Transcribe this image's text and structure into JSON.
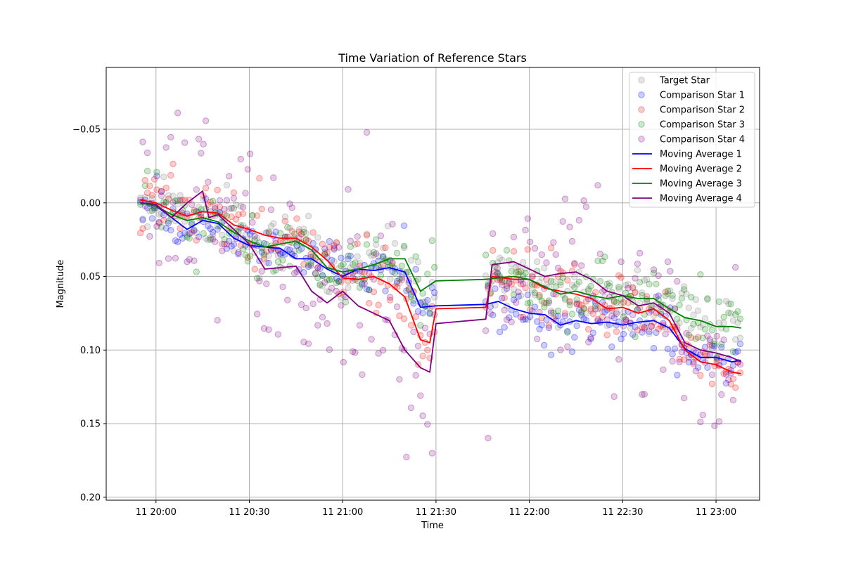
{
  "chart_data": {
    "type": "scatter",
    "title": "Time Variation of Reference Stars",
    "xlabel": "Time",
    "ylabel": "Magnitude",
    "y_inverted": true,
    "ylim": [
      0.202,
      -0.092
    ],
    "xlim": [
      "11 19:44",
      "11 23:14"
    ],
    "grid": true,
    "legend_position": "top-right",
    "x_ticks": [
      {
        "time": "11 20:00",
        "label": "11 20:00"
      },
      {
        "time": "11 20:30",
        "label": "11 20:30"
      },
      {
        "time": "11 21:00",
        "label": "11 21:00"
      },
      {
        "time": "11 21:30",
        "label": "11 21:30"
      },
      {
        "time": "11 22:00",
        "label": "11 22:00"
      },
      {
        "time": "11 22:30",
        "label": "11 22:30"
      },
      {
        "time": "11 23:00",
        "label": "11 23:00"
      }
    ],
    "y_ticks": [
      {
        "value": -0.05,
        "label": "−0.05"
      },
      {
        "value": 0.0,
        "label": "0.00"
      },
      {
        "value": 0.05,
        "label": "0.05"
      },
      {
        "value": 0.1,
        "label": "0.10"
      },
      {
        "value": 0.15,
        "label": "0.15"
      },
      {
        "value": 0.2,
        "label": "0.20"
      }
    ],
    "scatter_series": [
      {
        "name": "Target Star",
        "color": "#808080",
        "spread": 0.011
      },
      {
        "name": "Comparison Star 1",
        "color": "#0000ff",
        "spread": 0.009
      },
      {
        "name": "Comparison Star 2",
        "color": "#ff0000",
        "spread": 0.011
      },
      {
        "name": "Comparison Star 3",
        "color": "#008000",
        "spread": 0.011
      },
      {
        "name": "Comparison Star 4",
        "color": "#800080",
        "spread": 0.03
      }
    ],
    "line_series": [
      {
        "name": "Moving Average 1",
        "color": "#0000ff",
        "points": [
          [
            "11 19:55",
            0.0
          ],
          [
            "11 20:00",
            0.002
          ],
          [
            "11 20:05",
            0.01
          ],
          [
            "11 20:10",
            0.018
          ],
          [
            "11 20:15",
            0.012
          ],
          [
            "11 20:20",
            0.014
          ],
          [
            "11 20:25",
            0.024
          ],
          [
            "11 20:30",
            0.029
          ],
          [
            "11 20:35",
            0.03
          ],
          [
            "11 20:40",
            0.031
          ],
          [
            "11 20:45",
            0.038
          ],
          [
            "11 20:50",
            0.038
          ],
          [
            "11 20:55",
            0.045
          ],
          [
            "11 21:00",
            0.05
          ],
          [
            "11 21:05",
            0.045
          ],
          [
            "11 21:10",
            0.046
          ],
          [
            "11 21:15",
            0.044
          ],
          [
            "11 21:20",
            0.047
          ],
          [
            "11 21:25",
            0.071
          ],
          [
            "11 21:30",
            0.07
          ],
          [
            "11 21:46",
            0.069
          ],
          [
            "11 21:50",
            0.067
          ],
          [
            "11 21:55",
            0.072
          ],
          [
            "11 22:00",
            0.075
          ],
          [
            "11 22:05",
            0.076
          ],
          [
            "11 22:10",
            0.083
          ],
          [
            "11 22:15",
            0.08
          ],
          [
            "11 22:20",
            0.082
          ],
          [
            "11 22:25",
            0.081
          ],
          [
            "11 22:30",
            0.083
          ],
          [
            "11 22:35",
            0.081
          ],
          [
            "11 22:40",
            0.08
          ],
          [
            "11 22:45",
            0.085
          ],
          [
            "11 22:50",
            0.099
          ],
          [
            "11 22:55",
            0.105
          ],
          [
            "11 23:00",
            0.105
          ],
          [
            "11 23:05",
            0.108
          ],
          [
            "11 23:08",
            0.107
          ]
        ]
      },
      {
        "name": "Moving Average 2",
        "color": "#ff0000",
        "points": [
          [
            "11 19:55",
            -0.002
          ],
          [
            "11 20:00",
            0.0
          ],
          [
            "11 20:05",
            0.005
          ],
          [
            "11 20:10",
            0.009
          ],
          [
            "11 20:15",
            0.006
          ],
          [
            "11 20:20",
            0.007
          ],
          [
            "11 20:25",
            0.015
          ],
          [
            "11 20:30",
            0.018
          ],
          [
            "11 20:35",
            0.022
          ],
          [
            "11 20:40",
            0.024
          ],
          [
            "11 20:45",
            0.024
          ],
          [
            "11 20:50",
            0.03
          ],
          [
            "11 20:55",
            0.039
          ],
          [
            "11 21:00",
            0.051
          ],
          [
            "11 21:05",
            0.052
          ],
          [
            "11 21:10",
            0.05
          ],
          [
            "11 21:15",
            0.055
          ],
          [
            "11 21:20",
            0.064
          ],
          [
            "11 21:25",
            0.093
          ],
          [
            "11 21:28",
            0.095
          ],
          [
            "11 21:30",
            0.072
          ],
          [
            "11 21:46",
            0.071
          ],
          [
            "11 21:48",
            0.05
          ],
          [
            "11 21:55",
            0.052
          ],
          [
            "11 22:00",
            0.052
          ],
          [
            "11 22:05",
            0.058
          ],
          [
            "11 22:10",
            0.06
          ],
          [
            "11 22:15",
            0.062
          ],
          [
            "11 22:20",
            0.065
          ],
          [
            "11 22:25",
            0.072
          ],
          [
            "11 22:30",
            0.071
          ],
          [
            "11 22:35",
            0.075
          ],
          [
            "11 22:40",
            0.072
          ],
          [
            "11 22:45",
            0.08
          ],
          [
            "11 22:50",
            0.1
          ],
          [
            "11 22:55",
            0.108
          ],
          [
            "11 23:00",
            0.11
          ],
          [
            "11 23:05",
            0.115
          ],
          [
            "11 23:08",
            0.116
          ]
        ]
      },
      {
        "name": "Moving Average 3",
        "color": "#008000",
        "points": [
          [
            "11 19:55",
            0.0
          ],
          [
            "11 20:00",
            0.002
          ],
          [
            "11 20:05",
            0.008
          ],
          [
            "11 20:10",
            0.012
          ],
          [
            "11 20:15",
            0.01
          ],
          [
            "11 20:20",
            0.013
          ],
          [
            "11 20:25",
            0.02
          ],
          [
            "11 20:30",
            0.026
          ],
          [
            "11 20:35",
            0.03
          ],
          [
            "11 20:40",
            0.028
          ],
          [
            "11 20:45",
            0.026
          ],
          [
            "11 20:50",
            0.032
          ],
          [
            "11 20:55",
            0.044
          ],
          [
            "11 21:00",
            0.047
          ],
          [
            "11 21:05",
            0.045
          ],
          [
            "11 21:10",
            0.042
          ],
          [
            "11 21:15",
            0.038
          ],
          [
            "11 21:20",
            0.038
          ],
          [
            "11 21:25",
            0.06
          ],
          [
            "11 21:30",
            0.053
          ],
          [
            "11 21:46",
            0.052
          ],
          [
            "11 21:50",
            0.051
          ],
          [
            "11 21:55",
            0.05
          ],
          [
            "11 22:00",
            0.052
          ],
          [
            "11 22:05",
            0.057
          ],
          [
            "11 22:10",
            0.062
          ],
          [
            "11 22:15",
            0.06
          ],
          [
            "11 22:20",
            0.063
          ],
          [
            "11 22:25",
            0.065
          ],
          [
            "11 22:30",
            0.063
          ],
          [
            "11 22:35",
            0.065
          ],
          [
            "11 22:40",
            0.065
          ],
          [
            "11 22:45",
            0.072
          ],
          [
            "11 22:50",
            0.078
          ],
          [
            "11 22:55",
            0.08
          ],
          [
            "11 23:00",
            0.084
          ],
          [
            "11 23:05",
            0.084
          ],
          [
            "11 23:08",
            0.085
          ]
        ]
      },
      {
        "name": "Moving Average 4",
        "color": "#800080",
        "points": [
          [
            "11 19:55",
            0.0
          ],
          [
            "11 20:00",
            0.001
          ],
          [
            "11 20:05",
            0.01
          ],
          [
            "11 20:10",
            0.0
          ],
          [
            "11 20:15",
            -0.008
          ],
          [
            "11 20:17",
            0.01
          ],
          [
            "11 20:20",
            0.008
          ],
          [
            "11 20:25",
            0.018
          ],
          [
            "11 20:30",
            0.028
          ],
          [
            "11 20:35",
            0.045
          ],
          [
            "11 20:40",
            0.044
          ],
          [
            "11 20:45",
            0.043
          ],
          [
            "11 20:50",
            0.06
          ],
          [
            "11 20:55",
            0.068
          ],
          [
            "11 21:00",
            0.06
          ],
          [
            "11 21:05",
            0.07
          ],
          [
            "11 21:10",
            0.075
          ],
          [
            "11 21:15",
            0.08
          ],
          [
            "11 21:20",
            0.1
          ],
          [
            "11 21:25",
            0.112
          ],
          [
            "11 21:28",
            0.115
          ],
          [
            "11 21:30",
            0.082
          ],
          [
            "11 21:46",
            0.079
          ],
          [
            "11 21:48",
            0.042
          ],
          [
            "11 21:55",
            0.04
          ],
          [
            "11 22:00",
            0.045
          ],
          [
            "11 22:05",
            0.05
          ],
          [
            "11 22:10",
            0.048
          ],
          [
            "11 22:15",
            0.047
          ],
          [
            "11 22:20",
            0.052
          ],
          [
            "11 22:25",
            0.06
          ],
          [
            "11 22:30",
            0.063
          ],
          [
            "11 22:35",
            0.07
          ],
          [
            "11 22:40",
            0.068
          ],
          [
            "11 22:45",
            0.075
          ],
          [
            "11 22:50",
            0.095
          ],
          [
            "11 22:55",
            0.1
          ],
          [
            "11 23:00",
            0.102
          ],
          [
            "11 23:05",
            0.105
          ],
          [
            "11 23:08",
            0.108
          ]
        ]
      }
    ]
  }
}
